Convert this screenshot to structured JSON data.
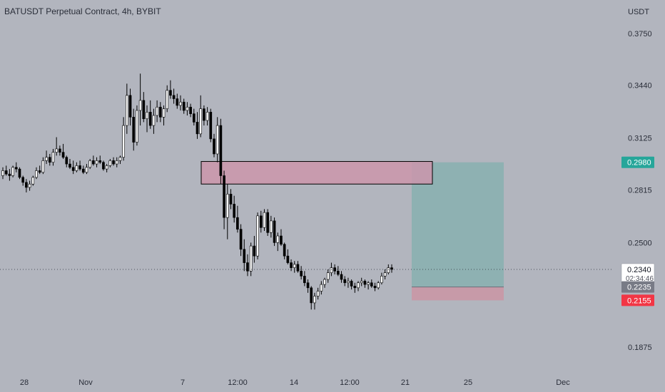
{
  "chart_data": {
    "type": "candlestick",
    "title": "BATUSDT Perpetual Contract, 4h, BYBIT",
    "currency_label": "USDT",
    "y_range": [
      0.1735,
      0.395
    ],
    "y_ticks": [
      "0.3750",
      "0.3440",
      "0.3125",
      "0.2815",
      "0.2500",
      "0.1875"
    ],
    "x_ticks": [
      "28",
      "Nov",
      "7",
      "12:00",
      "14",
      "12:00",
      "21",
      "25",
      "Dec"
    ],
    "price_badges": {
      "target": "0.2980",
      "current": "0.2340",
      "countdown": "02:34:46",
      "entry": "0.2235",
      "stop": "0.2155"
    },
    "supply_zone": {
      "top": 0.2985,
      "bottom": 0.285
    },
    "position_tool": {
      "target": 0.298,
      "entry": 0.2235,
      "stop": 0.2155
    },
    "candles": [
      [
        0.29,
        0.295,
        0.288,
        0.293
      ],
      [
        0.293,
        0.296,
        0.29,
        0.291
      ],
      [
        0.291,
        0.294,
        0.287,
        0.29
      ],
      [
        0.29,
        0.296,
        0.289,
        0.295
      ],
      [
        0.295,
        0.298,
        0.292,
        0.294
      ],
      [
        0.294,
        0.295,
        0.288,
        0.289
      ],
      [
        0.289,
        0.29,
        0.284,
        0.286
      ],
      [
        0.286,
        0.288,
        0.28,
        0.283
      ],
      [
        0.283,
        0.287,
        0.281,
        0.285
      ],
      [
        0.285,
        0.29,
        0.284,
        0.289
      ],
      [
        0.289,
        0.295,
        0.288,
        0.293
      ],
      [
        0.293,
        0.296,
        0.291,
        0.292
      ],
      [
        0.292,
        0.301,
        0.291,
        0.299
      ],
      [
        0.299,
        0.305,
        0.297,
        0.301
      ],
      [
        0.301,
        0.303,
        0.296,
        0.298
      ],
      [
        0.298,
        0.306,
        0.296,
        0.304
      ],
      [
        0.304,
        0.313,
        0.302,
        0.306
      ],
      [
        0.306,
        0.308,
        0.302,
        0.304
      ],
      [
        0.304,
        0.309,
        0.3,
        0.301
      ],
      [
        0.301,
        0.302,
        0.295,
        0.297
      ],
      [
        0.297,
        0.3,
        0.294,
        0.295
      ],
      [
        0.295,
        0.299,
        0.291,
        0.293
      ],
      [
        0.293,
        0.298,
        0.292,
        0.296
      ],
      [
        0.296,
        0.299,
        0.293,
        0.294
      ],
      [
        0.294,
        0.296,
        0.291,
        0.292
      ],
      [
        0.292,
        0.297,
        0.291,
        0.295
      ],
      [
        0.295,
        0.3,
        0.294,
        0.299
      ],
      [
        0.299,
        0.302,
        0.296,
        0.297
      ],
      [
        0.297,
        0.301,
        0.295,
        0.299
      ],
      [
        0.299,
        0.302,
        0.297,
        0.298
      ],
      [
        0.298,
        0.299,
        0.293,
        0.294
      ],
      [
        0.294,
        0.297,
        0.292,
        0.296
      ],
      [
        0.296,
        0.3,
        0.295,
        0.299
      ],
      [
        0.299,
        0.301,
        0.296,
        0.297
      ],
      [
        0.297,
        0.301,
        0.295,
        0.299
      ],
      [
        0.299,
        0.302,
        0.297,
        0.301
      ],
      [
        0.301,
        0.325,
        0.299,
        0.32
      ],
      [
        0.32,
        0.345,
        0.315,
        0.338
      ],
      [
        0.338,
        0.342,
        0.32,
        0.325
      ],
      [
        0.325,
        0.33,
        0.305,
        0.31
      ],
      [
        0.31,
        0.332,
        0.308,
        0.329
      ],
      [
        0.329,
        0.351,
        0.32,
        0.335
      ],
      [
        0.335,
        0.34,
        0.322,
        0.324
      ],
      [
        0.324,
        0.332,
        0.316,
        0.328
      ],
      [
        0.328,
        0.335,
        0.318,
        0.32
      ],
      [
        0.32,
        0.33,
        0.315,
        0.326
      ],
      [
        0.326,
        0.335,
        0.322,
        0.331
      ],
      [
        0.331,
        0.334,
        0.322,
        0.325
      ],
      [
        0.325,
        0.332,
        0.32,
        0.33
      ],
      [
        0.33,
        0.344,
        0.328,
        0.341
      ],
      [
        0.341,
        0.347,
        0.336,
        0.338
      ],
      [
        0.338,
        0.342,
        0.333,
        0.336
      ],
      [
        0.336,
        0.339,
        0.33,
        0.332
      ],
      [
        0.332,
        0.338,
        0.329,
        0.334
      ],
      [
        0.334,
        0.336,
        0.327,
        0.329
      ],
      [
        0.329,
        0.334,
        0.326,
        0.331
      ],
      [
        0.331,
        0.333,
        0.325,
        0.327
      ],
      [
        0.327,
        0.33,
        0.32,
        0.322
      ],
      [
        0.322,
        0.328,
        0.312,
        0.315
      ],
      [
        0.315,
        0.338,
        0.313,
        0.33
      ],
      [
        0.33,
        0.332,
        0.32,
        0.323
      ],
      [
        0.323,
        0.331,
        0.32,
        0.328
      ],
      [
        0.328,
        0.33,
        0.31,
        0.312
      ],
      [
        0.312,
        0.315,
        0.301,
        0.303
      ],
      [
        0.303,
        0.325,
        0.298,
        0.32
      ],
      [
        0.32,
        0.324,
        0.285,
        0.29
      ],
      [
        0.29,
        0.293,
        0.258,
        0.265
      ],
      [
        0.265,
        0.285,
        0.252,
        0.279
      ],
      [
        0.279,
        0.282,
        0.27,
        0.273
      ],
      [
        0.273,
        0.278,
        0.262,
        0.265
      ],
      [
        0.265,
        0.272,
        0.256,
        0.258
      ],
      [
        0.258,
        0.261,
        0.242,
        0.246
      ],
      [
        0.246,
        0.252,
        0.233,
        0.238
      ],
      [
        0.238,
        0.243,
        0.23,
        0.233
      ],
      [
        0.233,
        0.25,
        0.23,
        0.248
      ],
      [
        0.248,
        0.254,
        0.238,
        0.242
      ],
      [
        0.242,
        0.268,
        0.24,
        0.266
      ],
      [
        0.266,
        0.269,
        0.256,
        0.259
      ],
      [
        0.259,
        0.27,
        0.257,
        0.268
      ],
      [
        0.268,
        0.27,
        0.254,
        0.256
      ],
      [
        0.256,
        0.266,
        0.253,
        0.263
      ],
      [
        0.263,
        0.265,
        0.248,
        0.25
      ],
      [
        0.25,
        0.256,
        0.245,
        0.254
      ],
      [
        0.254,
        0.258,
        0.248,
        0.249
      ],
      [
        0.249,
        0.25,
        0.24,
        0.242
      ],
      [
        0.242,
        0.246,
        0.237,
        0.238
      ],
      [
        0.238,
        0.24,
        0.233,
        0.235
      ],
      [
        0.235,
        0.239,
        0.232,
        0.237
      ],
      [
        0.237,
        0.239,
        0.232,
        0.233
      ],
      [
        0.233,
        0.236,
        0.228,
        0.23
      ],
      [
        0.23,
        0.233,
        0.224,
        0.226
      ],
      [
        0.226,
        0.228,
        0.22,
        0.223
      ],
      [
        0.223,
        0.224,
        0.21,
        0.214
      ],
      [
        0.214,
        0.22,
        0.21,
        0.218
      ],
      [
        0.218,
        0.223,
        0.216,
        0.221
      ],
      [
        0.221,
        0.227,
        0.219,
        0.225
      ],
      [
        0.225,
        0.229,
        0.223,
        0.228
      ],
      [
        0.228,
        0.234,
        0.226,
        0.232
      ],
      [
        0.232,
        0.238,
        0.23,
        0.235
      ],
      [
        0.235,
        0.237,
        0.231,
        0.233
      ],
      [
        0.233,
        0.236,
        0.23,
        0.231
      ],
      [
        0.231,
        0.233,
        0.226,
        0.228
      ],
      [
        0.228,
        0.23,
        0.224,
        0.226
      ],
      [
        0.226,
        0.229,
        0.223,
        0.227
      ],
      [
        0.227,
        0.228,
        0.222,
        0.224
      ],
      [
        0.224,
        0.226,
        0.22,
        0.223
      ],
      [
        0.223,
        0.227,
        0.221,
        0.226
      ],
      [
        0.226,
        0.229,
        0.224,
        0.227
      ],
      [
        0.227,
        0.228,
        0.223,
        0.225
      ],
      [
        0.225,
        0.227,
        0.222,
        0.226
      ],
      [
        0.226,
        0.228,
        0.223,
        0.224
      ],
      [
        0.224,
        0.226,
        0.221,
        0.223
      ],
      [
        0.223,
        0.227,
        0.222,
        0.226
      ],
      [
        0.226,
        0.232,
        0.225,
        0.23
      ],
      [
        0.23,
        0.234,
        0.228,
        0.232
      ],
      [
        0.232,
        0.237,
        0.231,
        0.235
      ],
      [
        0.235,
        0.237,
        0.232,
        0.234
      ]
    ],
    "colors": {
      "background": "#b2b5be",
      "text": "#2a2e39",
      "candle": "#000000",
      "supply_zone": "#cb97ac",
      "target_zone": "#8eb1b2",
      "stop_zone": "#c79aa8",
      "target_badge": "#26a69a",
      "current_badge_bg": "#ffffff",
      "entry_badge": "#787b86",
      "stop_badge": "#f23645"
    }
  }
}
